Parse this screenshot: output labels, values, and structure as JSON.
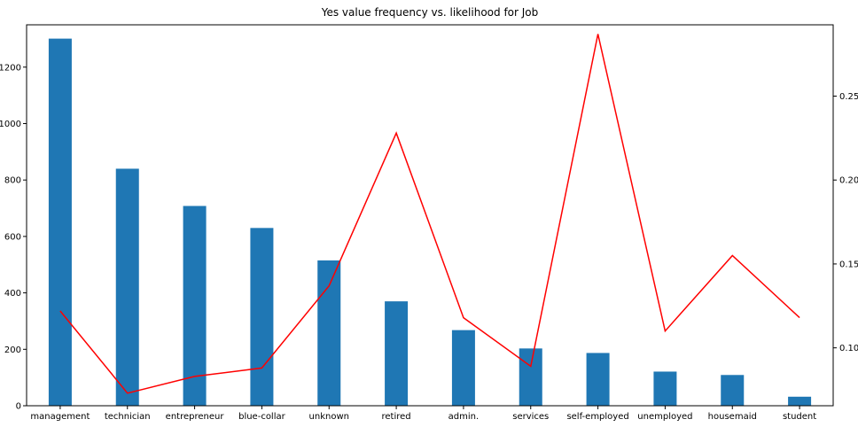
{
  "chart_data": {
    "type": "bar",
    "title": "Yes value frequency vs. likelihood for Job",
    "categories": [
      "management",
      "technician",
      "entrepreneur",
      "blue-collar",
      "unknown",
      "retired",
      "admin.",
      "services",
      "self-employed",
      "unemployed",
      "housemaid",
      "student"
    ],
    "series": [
      {
        "type": "bar",
        "axis": "left",
        "color": "#1f77b4",
        "values": [
          1301,
          840,
          708,
          630,
          515,
          370,
          268,
          203,
          187,
          121,
          109,
          32
        ]
      },
      {
        "type": "line",
        "axis": "right",
        "color": "#ff0000",
        "values": [
          0.122,
          0.073,
          0.083,
          0.088,
          0.137,
          0.228,
          0.118,
          0.089,
          0.287,
          0.11,
          0.155,
          0.118
        ]
      }
    ],
    "y_left": {
      "ylim": [
        0,
        1350
      ],
      "ticks": [
        0,
        200,
        400,
        600,
        800,
        1000,
        1200
      ]
    },
    "y_right": {
      "ylim": [
        0.0655,
        0.2925
      ],
      "ticks": [
        0.1,
        0.15,
        0.2,
        0.25
      ]
    },
    "xlabel": "",
    "ylabel": "",
    "grid": false,
    "legend": "none"
  }
}
